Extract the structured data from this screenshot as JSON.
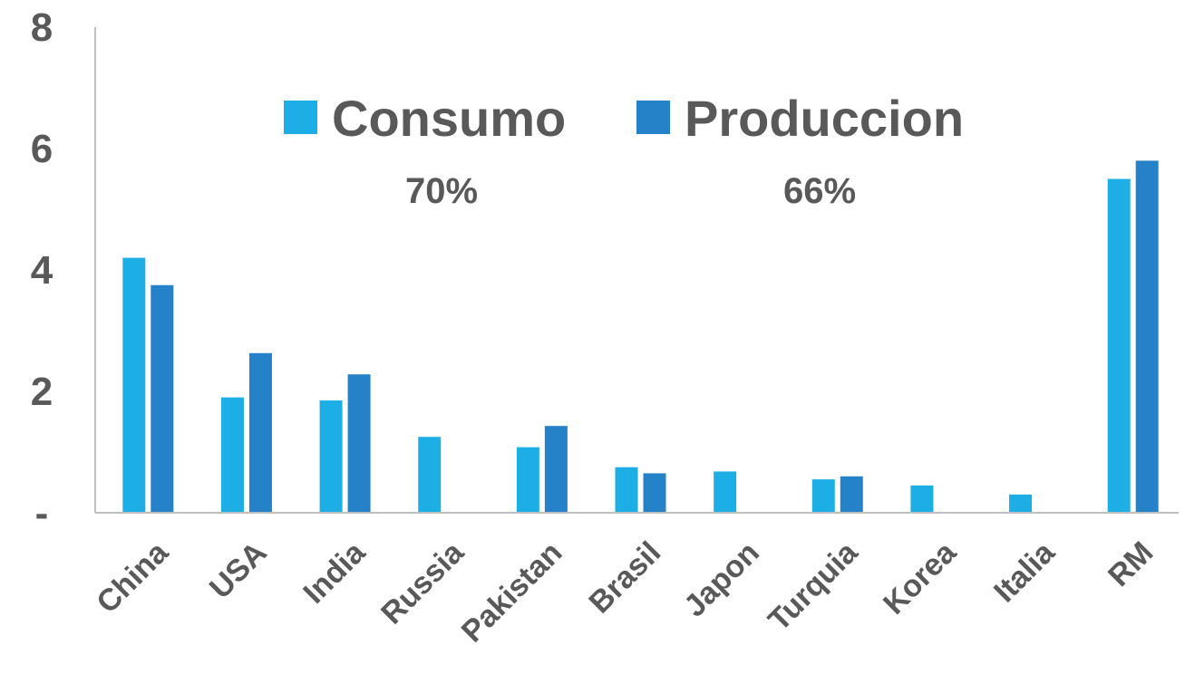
{
  "chart_data": {
    "type": "bar",
    "title": "",
    "xlabel": "",
    "ylabel": "",
    "categories": [
      "China",
      "USA",
      "India",
      "Russia",
      "Pakistan",
      "Brasil",
      "Japon",
      "Turquia",
      "Korea",
      "Italia",
      "RM"
    ],
    "series": [
      {
        "name": "Consumo",
        "color": "#1EAEE6",
        "values": [
          4.2,
          1.9,
          1.85,
          1.25,
          1.08,
          0.75,
          0.68,
          0.55,
          0.45,
          0.3,
          5.5
        ]
      },
      {
        "name": "Produccion",
        "color": "#2581C8",
        "values": [
          3.75,
          2.63,
          2.28,
          null,
          1.43,
          0.65,
          null,
          0.6,
          null,
          null,
          5.8
        ]
      }
    ],
    "ylim": [
      0,
      8
    ],
    "y_ticks": [
      {
        "value": 0,
        "label": "-"
      },
      {
        "value": 2,
        "label": "2"
      },
      {
        "value": 4,
        "label": "4"
      },
      {
        "value": 6,
        "label": "6"
      },
      {
        "value": 8,
        "label": "8"
      }
    ],
    "legend_position": "top-center",
    "annotations": [
      {
        "text": "70%",
        "series": "Consumo"
      },
      {
        "text": "66%",
        "series": "Produccion"
      }
    ],
    "grid": false
  }
}
